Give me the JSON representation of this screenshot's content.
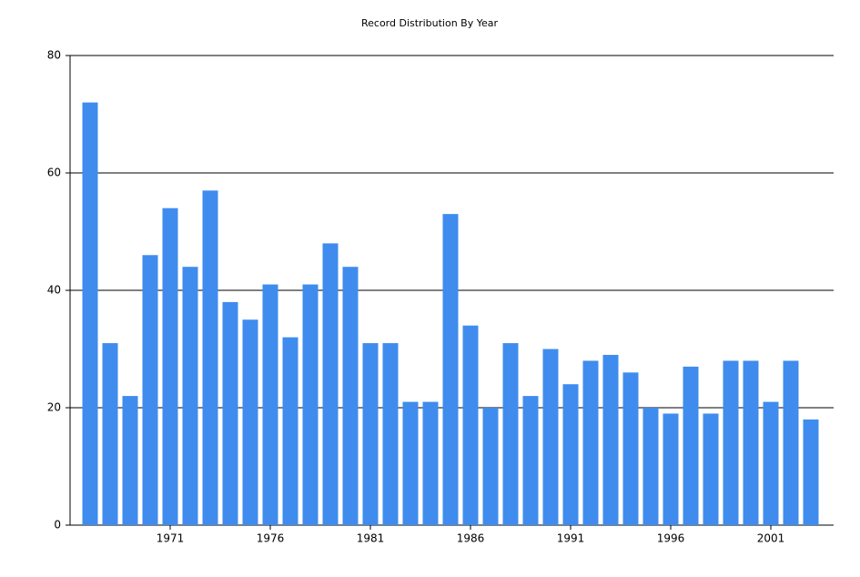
{
  "chart_data": {
    "type": "bar",
    "title": "Record Distribution By Year",
    "categories": [
      null,
      null,
      null,
      null,
      "1971",
      null,
      null,
      null,
      null,
      "1976",
      null,
      null,
      null,
      null,
      "1981",
      null,
      null,
      null,
      null,
      "1986",
      null,
      null,
      null,
      null,
      "1991",
      null,
      null,
      null,
      null,
      "1996",
      null,
      null,
      null,
      null,
      "2001",
      null,
      null
    ],
    "values": [
      72,
      31,
      22,
      46,
      54,
      44,
      57,
      38,
      35,
      41,
      32,
      41,
      48,
      44,
      31,
      31,
      21,
      21,
      53,
      34,
      20,
      31,
      22,
      30,
      24,
      28,
      29,
      26,
      20,
      19,
      27,
      19,
      28,
      28,
      21,
      28,
      18
    ],
    "color": "#3f8cee",
    "ylim": [
      0,
      80
    ],
    "yticks": [
      0,
      20,
      40,
      60,
      80
    ],
    "grid": true
  }
}
